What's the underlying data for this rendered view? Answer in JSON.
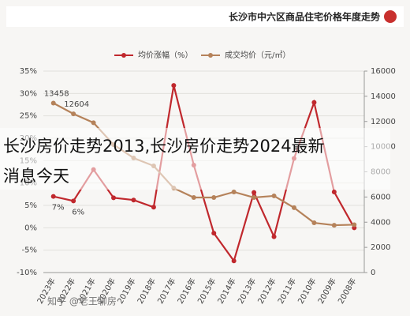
{
  "chart_data": {
    "type": "line",
    "title": "长沙市中六区商品住宅价格年度走势",
    "categories": [
      "2023年",
      "2022年",
      "2021年",
      "2020年",
      "2019年",
      "2018年",
      "2017年",
      "2016年",
      "2015年",
      "2014年",
      "2013年",
      "2012年",
      "2011年",
      "2010年",
      "2009年",
      "2008年"
    ],
    "series": [
      {
        "name": "均价涨幅（%）",
        "color": "#c0282d",
        "values": [
          7,
          6,
          13,
          6.7,
          6.2,
          4.6,
          31.8,
          14,
          -1.2,
          -7.4,
          7.9,
          -2,
          15.5,
          28,
          8,
          0
        ],
        "value_labels": [
          "7%",
          "6%",
          null,
          null,
          null,
          null,
          null,
          null,
          null,
          null,
          null,
          null,
          null,
          null,
          null,
          null
        ]
      },
      {
        "name": "成交均价（元/㎡）",
        "color": "#b5825a",
        "axis": "y2",
        "values": [
          13458,
          12604,
          11900,
          10160,
          9100,
          8470,
          6710,
          5960,
          5960,
          6400,
          5960,
          6090,
          5150,
          3950,
          3760,
          3800
        ],
        "value_labels": [
          "13458",
          "12604",
          null,
          null,
          null,
          null,
          null,
          null,
          null,
          null,
          null,
          null,
          null,
          null,
          null,
          null
        ]
      }
    ],
    "ylim": [
      -10,
      35
    ],
    "yticks": [
      {
        "value": -10,
        "label": "-10%"
      },
      {
        "value": -5,
        "label": "-5%"
      },
      {
        "value": 0,
        "label": "0%"
      },
      {
        "value": 5,
        "label": "5%"
      },
      {
        "value": 10,
        "label": "10%"
      },
      {
        "value": 15,
        "label": "15%"
      },
      {
        "value": 20,
        "label": "20%"
      },
      {
        "value": 25,
        "label": "25%"
      },
      {
        "value": 30,
        "label": "30%"
      },
      {
        "value": 35,
        "label": "35%"
      }
    ],
    "y2lim": [
      0,
      16000
    ],
    "y2ticks": [
      0,
      2000,
      4000,
      6000,
      8000,
      10000,
      12000,
      14000,
      16000
    ],
    "grid": true
  },
  "overlay": {
    "text": [
      "长沙房价走势2013,长沙房价走势2024最新",
      "消息今天"
    ]
  },
  "watermark": "知乎 @老王聊房"
}
